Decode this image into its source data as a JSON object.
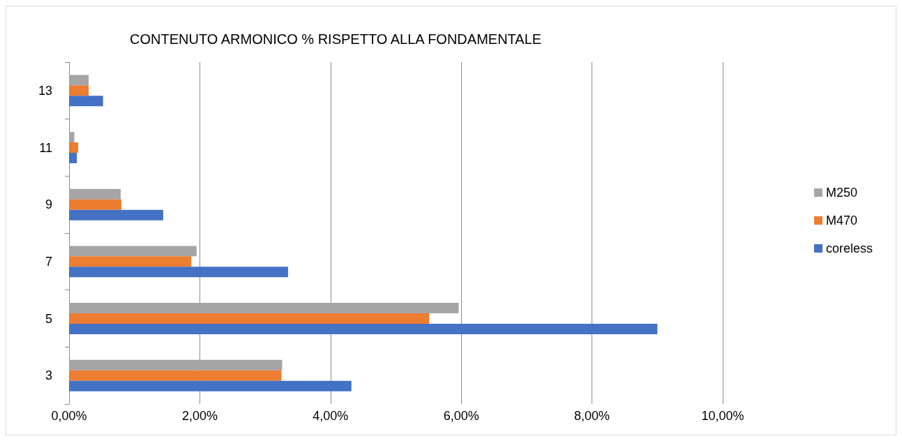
{
  "chart_data": {
    "type": "bar",
    "orientation": "horizontal",
    "title": "CONTENUTO ARMONICO % RISPETTO ALLA FONDAMENTALE",
    "categories": [
      "13",
      "11",
      "9",
      "7",
      "5",
      "3"
    ],
    "series": [
      {
        "name": "M250",
        "color": "#a5a5a5",
        "values": [
          0.3,
          0.08,
          0.79,
          1.95,
          5.96,
          3.26
        ]
      },
      {
        "name": "M470",
        "color": "#ed7d31",
        "values": [
          0.3,
          0.14,
          0.8,
          1.87,
          5.51,
          3.25
        ]
      },
      {
        "name": "coreless",
        "color": "#4472c4",
        "values": [
          0.52,
          0.12,
          1.44,
          3.35,
          9.0,
          4.32
        ]
      }
    ],
    "xlim": [
      0,
      10
    ],
    "xticks": [
      {
        "value": 0,
        "label": "0,00%"
      },
      {
        "value": 2,
        "label": "2,00%"
      },
      {
        "value": 4,
        "label": "4,00%"
      },
      {
        "value": 6,
        "label": "6,00%"
      },
      {
        "value": 8,
        "label": "8,00%"
      },
      {
        "value": 10,
        "label": "10,00%"
      }
    ],
    "grid": "x",
    "legend": "right"
  }
}
